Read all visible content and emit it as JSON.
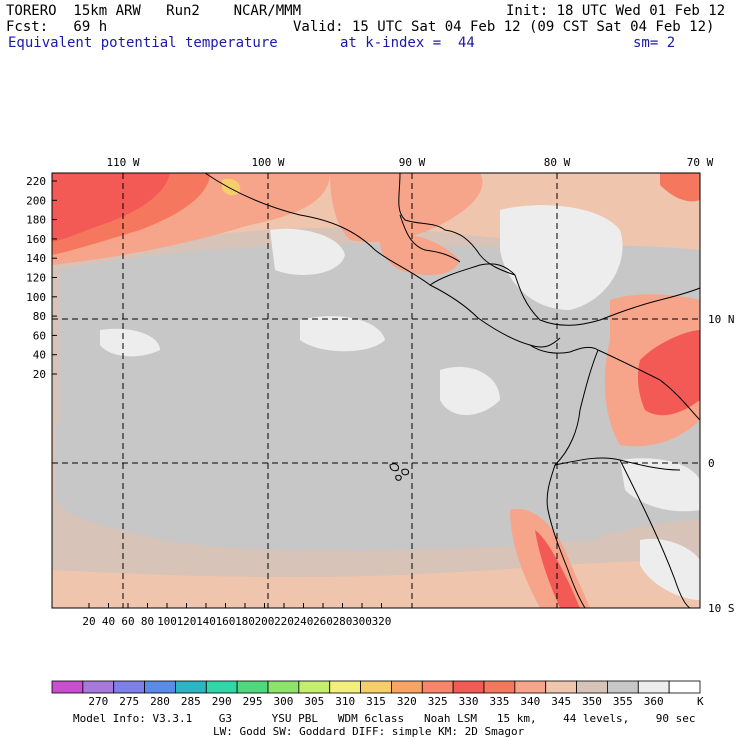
{
  "header": {
    "model": "TORERO  15km ARW   Run2    NCAR/MMM",
    "init": "Init: 18 UTC Wed 01 Feb 12",
    "fcst": "Fcst:   69 h",
    "valid": "Valid: 15 UTC Sat 04 Feb 12 (09 CST Sat 04 Feb 12)",
    "field": "Equivalent potential temperature",
    "level": "at k-index =  44",
    "smooth": "sm= 2"
  },
  "axes": {
    "top_lon": [
      "110 W",
      "100 W",
      "90 W",
      "80 W",
      "70 W"
    ],
    "right_lat": [
      "10 N",
      "0",
      "10 S"
    ],
    "left_y": [
      "220",
      "200",
      "180",
      "160",
      "140",
      "120",
      "100",
      "80",
      "60",
      "40",
      "20"
    ],
    "bottom_x": [
      "20",
      "40",
      "60",
      "80",
      "100",
      "120",
      "140",
      "160",
      "180",
      "200",
      "220",
      "240",
      "260",
      "280",
      "300",
      "320"
    ]
  },
  "colorbar": {
    "labels": [
      "270",
      "275",
      "280",
      "285",
      "290",
      "295",
      "300",
      "305",
      "310",
      "315",
      "320",
      "325",
      "330",
      "335",
      "340",
      "345",
      "350",
      "355",
      "360"
    ],
    "unit": "K",
    "colors": [
      "#c84fd0",
      "#a77ad9",
      "#7f7fe8",
      "#5a8be6",
      "#2bb6c4",
      "#2fd6a6",
      "#4fd87c",
      "#8de36c",
      "#c4ee6e",
      "#f2f07a",
      "#f6cf6c",
      "#f6a566",
      "#f8846a",
      "#f45a55",
      "#f5785e",
      "#f7a58a",
      "#efc6ad",
      "#d7c3b7",
      "#c7c7c7",
      "#ededed",
      "#ffffff"
    ]
  },
  "footer": {
    "line1": "Model Info: V3.3.1    G3      YSU PBL   WDM 6class   Noah LSM   15 km,    44 levels,    90 sec",
    "line2": "LW: Godd SW: Goddard DIFF: simple KM: 2D Smagor"
  }
}
